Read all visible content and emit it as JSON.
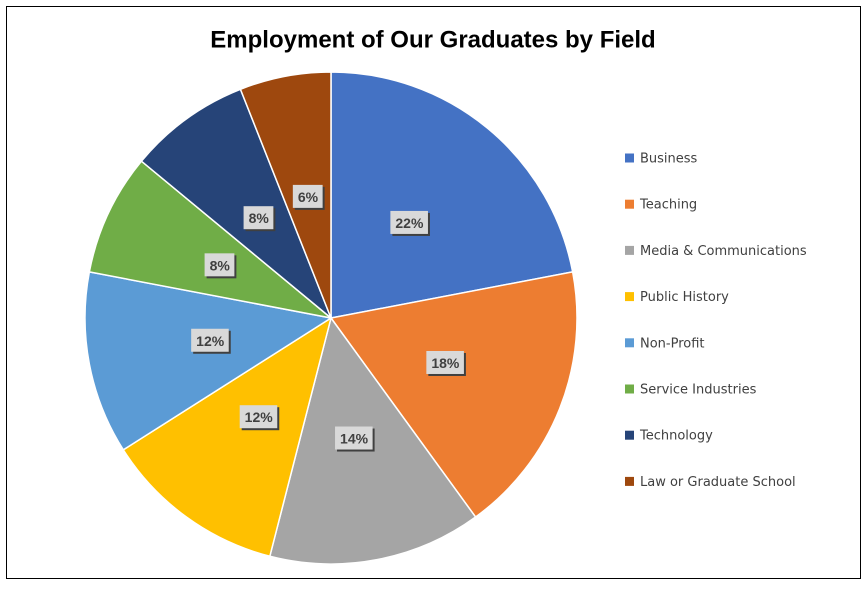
{
  "chart_data": {
    "type": "pie",
    "title": "Employment of Our Graduates by Field",
    "categories": [
      "Business",
      "Teaching",
      "Media & Communications",
      "Public History",
      "Non-Profit",
      "Service Industries",
      "Technology",
      "Law or Graduate School"
    ],
    "values": [
      22,
      18,
      14,
      12,
      12,
      8,
      8,
      6
    ],
    "value_labels": [
      "22%",
      "18%",
      "14%",
      "12%",
      "12%",
      "8%",
      "8%",
      "6%"
    ],
    "colors": [
      "#4472c4",
      "#ed7d31",
      "#a5a5a5",
      "#ffc000",
      "#5b9bd5",
      "#70ad47",
      "#264478",
      "#9e480e"
    ],
    "legend": "right"
  }
}
